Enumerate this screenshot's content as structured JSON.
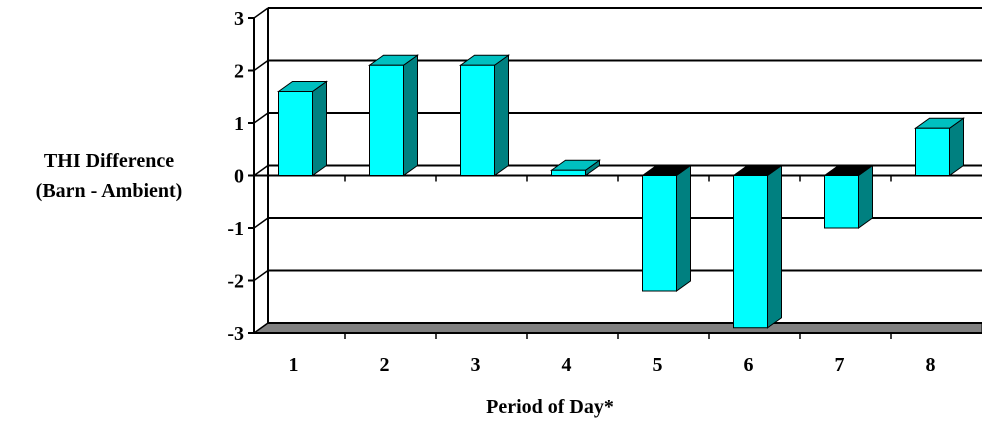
{
  "chart_data": {
    "type": "bar",
    "style": "3d-column",
    "categories": [
      "1",
      "2",
      "3",
      "4",
      "5",
      "6",
      "7",
      "8"
    ],
    "values": [
      1.6,
      2.1,
      2.1,
      0.1,
      -2.2,
      -2.9,
      -1.0,
      0.9
    ],
    "ylabel_lines": [
      "THI Difference",
      "(Barn - Ambient)"
    ],
    "xlabel": "Period of Day*",
    "ylim": [
      -3,
      3
    ],
    "yticks": [
      "3",
      "2",
      "1",
      "0",
      "-1",
      "-2",
      "-3"
    ],
    "grid": true,
    "colors": {
      "bar_front": "#00ffff",
      "bar_top": "#00c0c0",
      "bar_side": "#008080",
      "floor": "#808080",
      "grid": "#000000"
    }
  }
}
